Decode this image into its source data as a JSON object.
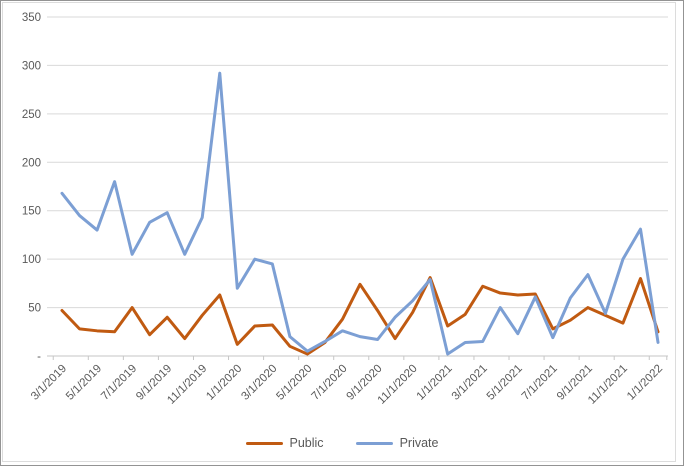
{
  "chart_data": {
    "type": "line",
    "title": "",
    "xlabel": "",
    "ylabel": "",
    "x": [
      "3/1/2019",
      "4/1/2019",
      "5/1/2019",
      "6/1/2019",
      "7/1/2019",
      "8/1/2019",
      "9/1/2019",
      "10/1/2019",
      "11/1/2019",
      "12/1/2019",
      "1/1/2020",
      "2/1/2020",
      "3/1/2020",
      "4/1/2020",
      "5/1/2020",
      "6/1/2020",
      "7/1/2020",
      "8/1/2020",
      "9/1/2020",
      "10/1/2020",
      "11/1/2020",
      "12/1/2020",
      "1/1/2021",
      "2/1/2021",
      "3/1/2021",
      "4/1/2021",
      "5/1/2021",
      "6/1/2021",
      "7/1/2021",
      "8/1/2021",
      "9/1/2021",
      "10/1/2021",
      "11/1/2021",
      "12/1/2021",
      "1/1/2022"
    ],
    "x_tick_labels": [
      "3/1/2019",
      "5/1/2019",
      "7/1/2019",
      "9/1/2019",
      "11/1/2019",
      "1/1/2020",
      "3/1/2020",
      "5/1/2020",
      "7/1/2020",
      "9/1/2020",
      "11/1/2020",
      "1/1/2021",
      "3/1/2021",
      "5/1/2021",
      "7/1/2021",
      "9/1/2021",
      "11/1/2021",
      "1/1/2022"
    ],
    "series": [
      {
        "name": "Public",
        "color": "#C05A11",
        "values": [
          47,
          28,
          26,
          25,
          50,
          22,
          40,
          18,
          42,
          63,
          12,
          31,
          32,
          10,
          2,
          14,
          38,
          74,
          47,
          18,
          45,
          81,
          31,
          43,
          72,
          65,
          63,
          64,
          28,
          37,
          50,
          42,
          34,
          80,
          25
        ]
      },
      {
        "name": "Private",
        "color": "#7C9FD4",
        "values": [
          168,
          145,
          130,
          180,
          105,
          138,
          148,
          105,
          143,
          292,
          70,
          100,
          95,
          20,
          5,
          15,
          26,
          20,
          17,
          40,
          57,
          79,
          2,
          14,
          15,
          50,
          23,
          61,
          19,
          60,
          84,
          44,
          100,
          131,
          14
        ]
      }
    ],
    "ylim": [
      0,
      350
    ],
    "y_tick_values": [
      350,
      300,
      250,
      200,
      150,
      100,
      50,
      0
    ],
    "y_tick_labels": [
      "350",
      "300",
      "250",
      "200",
      "150",
      "100",
      "50",
      "-"
    ],
    "grid": true,
    "legend_position": "bottom",
    "colors": {
      "gridline": "#D9D9D9",
      "axis": "#C6C6C6",
      "tick_text": "#595959"
    }
  }
}
